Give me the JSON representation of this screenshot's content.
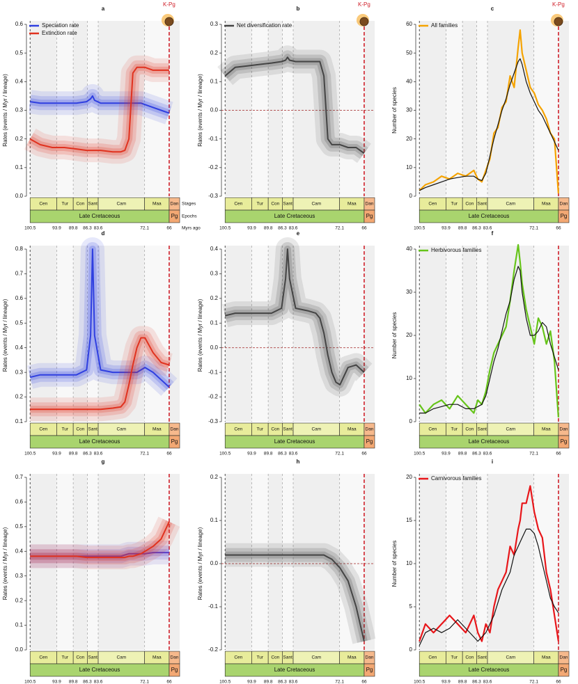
{
  "time_scale": {
    "stages": [
      "Cen",
      "Tur",
      "Con",
      "Sant",
      "Cam",
      "Maa",
      "Dan"
    ],
    "epochs": [
      "Late Cretaceous",
      "Pg"
    ],
    "row_labels": [
      "Stages",
      "Epochs"
    ],
    "unit_label": "Myrs ago",
    "event_label": "K-Pg"
  },
  "chart_data": [
    {
      "type": "line",
      "label": "a",
      "y_label": "Rates (events / Myr / lineage)",
      "band": true,
      "legend": "upper left",
      "event": true,
      "xlim": [
        101.4,
        63.4
      ],
      "xticks": [
        100.5,
        93.9,
        89.8,
        86.3,
        83.6,
        72.1,
        66
      ],
      "ylim": [
        0,
        0.6
      ],
      "yticks": [
        {
          "value": 0,
          "label": "0.0"
        },
        0.1,
        0.2,
        0.3,
        0.4,
        0.5,
        0.6
      ],
      "x": [
        100.5,
        98,
        95,
        92,
        89,
        86.5,
        85.5,
        85,
        84.5,
        83,
        80,
        78,
        77,
        76,
        75,
        74,
        73,
        72,
        70,
        68,
        66
      ],
      "series": [
        {
          "name": "Speciation rate",
          "color": "#2f3fe0",
          "values": [
            0.33,
            0.325,
            0.325,
            0.325,
            0.325,
            0.33,
            0.34,
            0.35,
            0.335,
            0.325,
            0.325,
            0.325,
            0.325,
            0.325,
            0.325,
            0.325,
            0.325,
            0.32,
            0.31,
            0.3,
            0.29
          ]
        },
        {
          "name": "Extinction rate",
          "color": "#e0321f",
          "values": [
            0.2,
            0.18,
            0.17,
            0.17,
            0.165,
            0.16,
            0.16,
            0.16,
            0.16,
            0.16,
            0.155,
            0.155,
            0.16,
            0.2,
            0.43,
            0.45,
            0.45,
            0.45,
            0.44,
            0.44,
            0.44
          ]
        }
      ]
    },
    {
      "type": "line",
      "label": "b",
      "y_label": "Rates (events / Myr / lineage)",
      "band": true,
      "legend": "upper left",
      "event": true,
      "zero_line": true,
      "xlim": [
        101.4,
        63.4
      ],
      "xticks": [
        100.5,
        93.9,
        89.8,
        86.3,
        83.6,
        72.1,
        66
      ],
      "ylim": [
        -0.3,
        0.3
      ],
      "yticks": [
        -0.3,
        -0.2,
        -0.1,
        {
          "value": 0,
          "label": "0.0"
        },
        0.1,
        0.2,
        0.3
      ],
      "x": [
        100.5,
        98,
        95,
        92,
        89,
        86.5,
        85.5,
        85,
        84.5,
        83,
        80,
        78,
        77,
        76,
        75,
        74,
        73,
        72,
        70,
        68,
        66
      ],
      "series": [
        {
          "name": "Net diversification rate",
          "color": "#444444",
          "values": [
            0.12,
            0.15,
            0.155,
            0.16,
            0.165,
            0.17,
            0.175,
            0.185,
            0.175,
            0.17,
            0.17,
            0.17,
            0.17,
            0.12,
            -0.1,
            -0.12,
            -0.12,
            -0.12,
            -0.13,
            -0.13,
            -0.15
          ]
        }
      ]
    },
    {
      "type": "line",
      "label": "c",
      "y_label": "Number of species",
      "band": false,
      "legend": "upper left",
      "event": true,
      "xlim": [
        101.4,
        63.4
      ],
      "xticks": [
        100.5,
        93.9,
        89.8,
        86.3,
        83.6,
        72.1,
        66
      ],
      "ylim": [
        0,
        60
      ],
      "yticks": [
        0,
        10,
        20,
        30,
        40,
        50,
        60
      ],
      "x": [
        100.5,
        99,
        97,
        95,
        93,
        91,
        89,
        87,
        86,
        85,
        84,
        83,
        82,
        81,
        80,
        79,
        78,
        77,
        76,
        75.5,
        75,
        74,
        73,
        72,
        71,
        70,
        69,
        68,
        67,
        66
      ],
      "series": [
        {
          "name": "All families",
          "color": "#f5a300",
          "values": [
            2,
            4,
            5,
            7,
            6,
            8,
            7,
            9,
            6,
            5,
            9,
            13,
            22,
            24,
            31,
            33,
            42,
            38,
            52,
            58,
            50,
            44,
            38,
            36,
            32,
            30,
            27,
            22,
            20,
            1
          ]
        },
        {
          "color": "#111111",
          "values": [
            2,
            3,
            4,
            5,
            6,
            6.5,
            7,
            7,
            6,
            5.5,
            8,
            14,
            20,
            25,
            30,
            34,
            39,
            43,
            47,
            48,
            46,
            40,
            36,
            33,
            30,
            28,
            25,
            22,
            19,
            16
          ]
        }
      ]
    },
    {
      "type": "line",
      "label": "d",
      "y_label": "Rates (events / Myr / lineage)",
      "band": true,
      "xlim": [
        101.4,
        63.4
      ],
      "xticks": [
        100.5,
        93.9,
        89.8,
        86.3,
        83.6,
        72.1,
        66
      ],
      "ylim": [
        0.1,
        0.8
      ],
      "yticks": [
        0.1,
        0.2,
        0.3,
        0.4,
        0.5,
        0.6,
        0.7,
        0.8
      ],
      "x": [
        100.5,
        98,
        95,
        92,
        89,
        86.5,
        85.5,
        85,
        84.5,
        83,
        80,
        78,
        77,
        76,
        75,
        74,
        73,
        72,
        70,
        68,
        66
      ],
      "series": [
        {
          "color": "#2f3fe0",
          "values": [
            0.28,
            0.29,
            0.29,
            0.29,
            0.29,
            0.31,
            0.45,
            0.8,
            0.45,
            0.31,
            0.3,
            0.3,
            0.3,
            0.3,
            0.3,
            0.3,
            0.31,
            0.32,
            0.3,
            0.27,
            0.24
          ]
        },
        {
          "color": "#e0321f",
          "values": [
            0.15,
            0.15,
            0.15,
            0.15,
            0.15,
            0.15,
            0.15,
            0.15,
            0.15,
            0.15,
            0.155,
            0.16,
            0.18,
            0.25,
            0.33,
            0.4,
            0.44,
            0.44,
            0.38,
            0.34,
            0.33
          ]
        }
      ]
    },
    {
      "type": "line",
      "label": "e",
      "y_label": "Rates (events / Myr / lineage)",
      "band": true,
      "zero_line": true,
      "xlim": [
        101.4,
        63.4
      ],
      "xticks": [
        100.5,
        93.9,
        89.8,
        86.3,
        83.6,
        72.1,
        66
      ],
      "ylim": [
        -0.3,
        0.4
      ],
      "yticks": [
        -0.3,
        -0.2,
        -0.1,
        {
          "value": 0,
          "label": "0.0"
        },
        0.1,
        0.2,
        0.3,
        0.4
      ],
      "x": [
        100.5,
        98,
        95,
        92,
        89,
        86.5,
        85.5,
        85,
        84.5,
        83,
        80,
        78,
        77,
        76,
        75,
        74,
        73,
        72,
        70,
        68,
        66
      ],
      "series": [
        {
          "color": "#444444",
          "values": [
            0.13,
            0.14,
            0.14,
            0.14,
            0.14,
            0.16,
            0.28,
            0.4,
            0.28,
            0.16,
            0.15,
            0.14,
            0.12,
            0.06,
            -0.03,
            -0.1,
            -0.14,
            -0.15,
            -0.08,
            -0.07,
            -0.1
          ]
        }
      ]
    },
    {
      "type": "line",
      "label": "f",
      "y_label": "Number of species",
      "band": false,
      "legend": "upper left",
      "xlim": [
        101.4,
        63.4
      ],
      "xticks": [
        100.5,
        93.9,
        89.8,
        86.3,
        83.6,
        72.1,
        66
      ],
      "ylim": [
        0,
        40
      ],
      "yticks": [
        0,
        10,
        20,
        30,
        40
      ],
      "x": [
        100.5,
        99,
        97,
        95,
        93,
        91,
        89,
        87,
        86,
        85,
        84,
        83,
        82,
        81,
        80,
        79,
        78,
        77,
        76,
        75.5,
        75,
        74,
        73,
        72,
        71,
        70,
        69,
        68,
        67,
        66
      ],
      "series": [
        {
          "name": "Herbivorous families",
          "color": "#66c41a",
          "values": [
            4,
            2,
            4,
            5,
            3,
            6,
            4,
            2,
            5,
            4,
            7,
            12,
            16,
            18,
            20,
            22,
            28,
            35,
            41,
            37,
            32,
            26,
            22,
            18,
            24,
            22,
            18,
            21,
            14,
            1
          ]
        },
        {
          "color": "#111111",
          "values": [
            2,
            2,
            3,
            3.5,
            4,
            4,
            3,
            3,
            3.5,
            4,
            6,
            10,
            14,
            17,
            21,
            25,
            28,
            33,
            36,
            35,
            30,
            24,
            20,
            20,
            21,
            23,
            22,
            18,
            15,
            12
          ]
        }
      ]
    },
    {
      "type": "line",
      "label": "g",
      "y_label": "Rates (events / Myr / lineage)",
      "band": true,
      "xlim": [
        101.4,
        63.4
      ],
      "xticks": [
        100.5,
        93.9,
        89.8,
        86.3,
        83.6,
        72.1,
        66
      ],
      "ylim": [
        0,
        0.7
      ],
      "yticks": [
        {
          "value": 0,
          "label": "0.0"
        },
        0.1,
        0.2,
        0.3,
        0.4,
        0.5,
        0.6,
        0.7
      ],
      "x": [
        100.5,
        98,
        95,
        92,
        89,
        86.5,
        85.5,
        85,
        84.5,
        83,
        80,
        78,
        77,
        76,
        75,
        74,
        73,
        72,
        70,
        68,
        66
      ],
      "series": [
        {
          "color": "#5a3fc8",
          "values": [
            0.38,
            0.38,
            0.38,
            0.38,
            0.38,
            0.38,
            0.38,
            0.38,
            0.38,
            0.38,
            0.38,
            0.38,
            0.385,
            0.39,
            0.39,
            0.39,
            0.39,
            0.39,
            0.395,
            0.395,
            0.395
          ]
        },
        {
          "color": "#e0321f",
          "values": [
            0.38,
            0.38,
            0.38,
            0.38,
            0.38,
            0.375,
            0.375,
            0.375,
            0.375,
            0.375,
            0.375,
            0.375,
            0.375,
            0.38,
            0.38,
            0.385,
            0.39,
            0.4,
            0.42,
            0.45,
            0.52
          ]
        }
      ]
    },
    {
      "type": "line",
      "label": "h",
      "y_label": "Rates (events / Myr / lineage)",
      "band": true,
      "zero_line": true,
      "xlim": [
        101.4,
        63.4
      ],
      "xticks": [
        100.5,
        93.9,
        89.8,
        86.3,
        83.6,
        72.1,
        66
      ],
      "ylim": [
        -0.2,
        0.2
      ],
      "yticks": [
        -0.2,
        -0.1,
        {
          "value": 0,
          "label": "0.0"
        },
        0.1,
        0.2
      ],
      "x": [
        100.5,
        98,
        95,
        92,
        89,
        86.5,
        85.5,
        85,
        84.5,
        83,
        80,
        78,
        77,
        76,
        75,
        74,
        73,
        72,
        70,
        68,
        66
      ],
      "series": [
        {
          "color": "#444444",
          "values": [
            0.02,
            0.02,
            0.02,
            0.02,
            0.02,
            0.02,
            0.02,
            0.02,
            0.02,
            0.02,
            0.02,
            0.02,
            0.02,
            0.02,
            0.015,
            0.01,
            0,
            -0.01,
            -0.04,
            -0.1,
            -0.18
          ]
        }
      ]
    },
    {
      "type": "line",
      "label": "i",
      "y_label": "Number of species",
      "band": false,
      "legend": "upper left",
      "xlim": [
        101.4,
        63.4
      ],
      "xticks": [
        100.5,
        93.9,
        89.8,
        86.3,
        83.6,
        72.1,
        66
      ],
      "ylim": [
        0,
        20
      ],
      "yticks": [
        0,
        5,
        10,
        15,
        20
      ],
      "x": [
        100.5,
        99,
        97,
        95,
        93,
        91,
        89,
        87,
        86,
        85,
        84,
        83,
        82,
        81,
        80,
        79,
        78,
        77,
        76,
        75.5,
        75,
        74,
        73,
        72,
        71,
        70,
        69,
        68,
        67,
        66
      ],
      "series": [
        {
          "name": "Carnivorous families",
          "color": "#e8161a",
          "values": [
            1,
            3,
            2,
            3,
            4,
            3,
            2,
            4,
            2,
            1,
            3,
            2,
            5,
            7,
            8,
            9,
            12,
            11,
            14,
            15,
            17,
            17,
            19,
            16,
            14,
            13,
            9,
            7,
            4,
            1
          ]
        },
        {
          "color": "#111111",
          "values": [
            0.5,
            2,
            2.5,
            2,
            2.5,
            3.5,
            2.5,
            1.5,
            1,
            1.5,
            2,
            3,
            4,
            5.5,
            7,
            8,
            9,
            11,
            12,
            12.5,
            13,
            14,
            14,
            13.5,
            12,
            10,
            8,
            6,
            5,
            4.3
          ]
        }
      ]
    }
  ]
}
